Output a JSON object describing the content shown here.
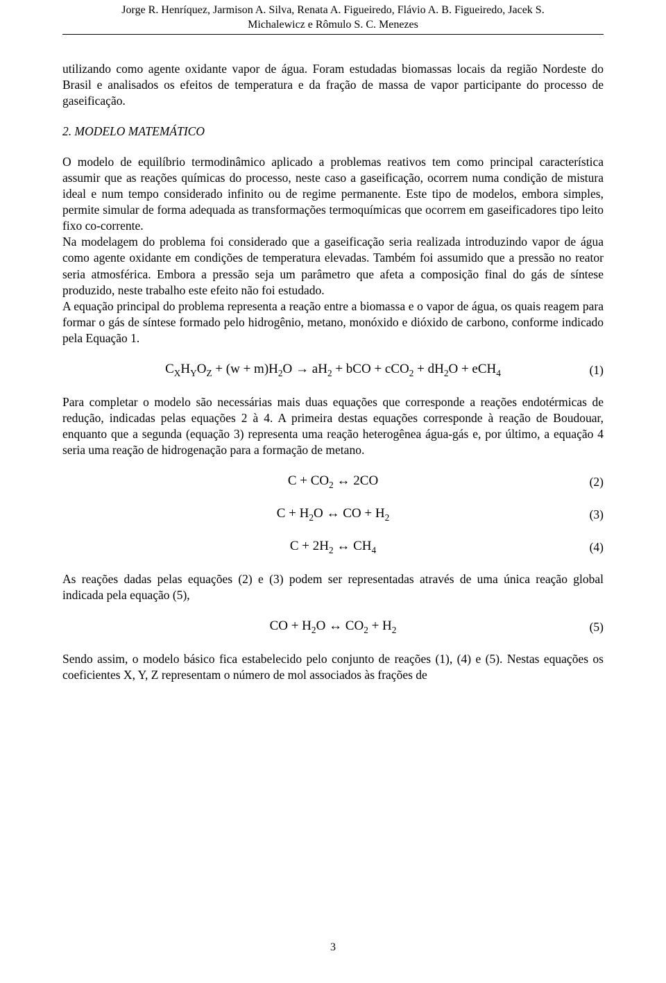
{
  "header": {
    "line1": "Jorge R. Henríquez, Jarmison A. Silva, Renata A. Figueiredo, Flávio A. B. Figueiredo, Jacek S.",
    "line2": "Michalewicz e Rômulo S. C. Menezes"
  },
  "para1": "utilizando como agente oxidante vapor de água. Foram estudadas biomassas locais da região Nordeste do Brasil e analisados os efeitos de temperatura e da fração de massa de vapor participante do processo de gaseificação.",
  "section_title": "2.  MODELO MATEMÁTICO",
  "para2": "O modelo de equilíbrio termodinâmico aplicado a problemas reativos tem como principal característica assumir que as reações químicas do processo, neste caso a gaseificação, ocorrem numa condição de mistura ideal e num tempo considerado infinito ou de regime permanente. Este tipo de modelos, embora simples, permite simular de forma adequada as transformações termoquímicas que ocorrem em gaseificadores tipo leito fixo co-corrente.",
  "para3": "Na modelagem do problema foi considerado que a gaseificação seria realizada introduzindo vapor de água como agente oxidante em condições de temperatura elevadas. Também foi assumido que a pressão no reator seria atmosférica. Embora a pressão seja um parâmetro que afeta a composição final do gás de síntese produzido, neste trabalho este efeito não foi estudado.",
  "para4": "A equação principal do problema representa a reação entre a biomassa e o vapor de água, os quais reagem para formar o gás de síntese formado pelo hidrogênio, metano, monóxido e dióxido de carbono, conforme indicado pela Equação 1.",
  "eq1": "C<sub>X</sub>H<sub>Y</sub>O<sub>Z</sub> + (w + m)H<sub>2</sub>O → aH<sub>2</sub> + bCO + cCO<sub>2</sub> + dH<sub>2</sub>O + eCH<sub>4</sub>",
  "eq1_num": "(1)",
  "para5": "Para completar o modelo são necessárias mais duas equações que corresponde a reações endotérmicas de redução, indicadas pelas equações 2 à 4. A primeira destas equações corresponde à reação de Boudouar, enquanto que a segunda (equação 3) representa uma reação heterogênea água-gás e, por último, a equação 4 seria uma reação de hidrogenação para a formação de metano.",
  "eq2": "C + CO<sub>2</sub> ↔ 2CO",
  "eq2_num": "(2)",
  "eq3": "C + H<sub>2</sub>O ↔ CO + H<sub>2</sub>",
  "eq3_num": "(3)",
  "eq4": "C + 2H<sub>2</sub> ↔ CH<sub>4</sub>",
  "eq4_num": "(4)",
  "para6": "As reações dadas pelas equações (2) e (3) podem ser representadas através de uma única reação global indicada pela equação (5),",
  "eq5": "CO + H<sub>2</sub>O ↔ CO<sub>2</sub> + H<sub>2</sub>",
  "eq5_num": "(5)",
  "para7": "Sendo assim, o modelo básico fica estabelecido pelo conjunto de reações (1), (4) e (5). Nestas equações os coeficientes X, Y, Z representam o número de mol associados às frações de",
  "page_number": "3"
}
